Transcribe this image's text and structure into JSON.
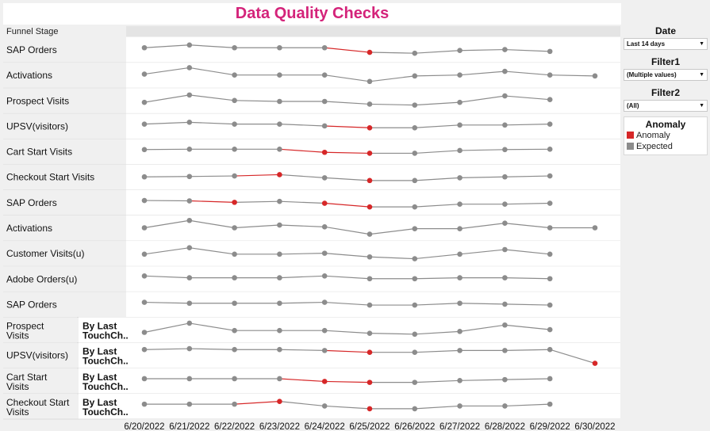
{
  "title": "Data Quality Checks",
  "header": {
    "funnel_stage": "Funnel Stage"
  },
  "filters": [
    {
      "label": "Date",
      "value": "Last 14 days"
    },
    {
      "label": "Filter1",
      "value": "(Multiple values)"
    },
    {
      "label": "Filter2",
      "value": "(All)"
    }
  ],
  "legend": {
    "title": "Anomaly",
    "items": [
      {
        "label": "Anomaly",
        "color": "#d62728"
      },
      {
        "label": "Expected",
        "color": "#8c8c8c"
      }
    ]
  },
  "colors": {
    "anomaly": "#d62728",
    "expected": "#8c8c8c",
    "title": "#d4237a"
  },
  "chart_data": {
    "type": "line",
    "x": [
      "6/20/2022",
      "6/21/2022",
      "6/22/2022",
      "6/23/2022",
      "6/24/2022",
      "6/25/2022",
      "6/26/2022",
      "6/27/2022",
      "6/28/2022",
      "6/29/2022",
      "6/30/2022"
    ],
    "rows": [
      {
        "label": "SAP Orders",
        "sub": "",
        "values": [
          0.6,
          0.75,
          0.6,
          0.6,
          0.6,
          0.35,
          0.3,
          0.45,
          0.5,
          0.4,
          null
        ],
        "anomaly": [
          5
        ]
      },
      {
        "label": "Activations",
        "sub": "",
        "values": [
          0.55,
          0.9,
          0.5,
          0.5,
          0.5,
          0.15,
          0.45,
          0.5,
          0.7,
          0.5,
          0.45
        ],
        "anomaly": []
      },
      {
        "label": "Prospect Visits",
        "sub": "",
        "values": [
          0.4,
          0.8,
          0.5,
          0.45,
          0.45,
          0.3,
          0.25,
          0.4,
          0.75,
          0.55,
          null
        ],
        "anomaly": []
      },
      {
        "label": "UPSV(visitors)",
        "sub": "",
        "values": [
          0.6,
          0.7,
          0.6,
          0.6,
          0.5,
          0.4,
          0.4,
          0.55,
          0.55,
          0.6,
          null
        ],
        "anomaly": [
          5
        ]
      },
      {
        "label": "Cart Start Visits",
        "sub": "",
        "values": [
          0.6,
          0.62,
          0.62,
          0.62,
          0.45,
          0.4,
          0.4,
          0.55,
          0.6,
          0.62,
          null
        ],
        "anomaly": [
          4,
          5
        ]
      },
      {
        "label": "Checkout Start Visits",
        "sub": "",
        "values": [
          0.5,
          0.52,
          0.55,
          0.62,
          0.45,
          0.3,
          0.3,
          0.45,
          0.5,
          0.55,
          null
        ],
        "anomaly": [
          3,
          5
        ]
      },
      {
        "label": "SAP Orders",
        "sub": "",
        "values": [
          0.6,
          0.58,
          0.5,
          0.55,
          0.45,
          0.25,
          0.25,
          0.4,
          0.4,
          0.45,
          null
        ],
        "anomaly": [
          2,
          4,
          5
        ]
      },
      {
        "label": "Activations",
        "sub": "",
        "values": [
          0.5,
          0.9,
          0.5,
          0.65,
          0.55,
          0.15,
          0.45,
          0.45,
          0.75,
          0.5,
          0.5
        ],
        "anomaly": []
      },
      {
        "label": "Customer Visits(u)",
        "sub": "",
        "values": [
          0.45,
          0.8,
          0.45,
          0.45,
          0.5,
          0.3,
          0.2,
          0.45,
          0.7,
          0.45,
          null
        ],
        "anomaly": []
      },
      {
        "label": "Adobe Orders(u)",
        "sub": "",
        "values": [
          0.65,
          0.55,
          0.55,
          0.55,
          0.65,
          0.5,
          0.5,
          0.55,
          0.55,
          0.5,
          null
        ],
        "anomaly": []
      },
      {
        "label": "SAP Orders",
        "sub": "",
        "values": [
          0.6,
          0.55,
          0.55,
          0.55,
          0.6,
          0.45,
          0.45,
          0.55,
          0.5,
          0.45,
          null
        ],
        "anomaly": []
      },
      {
        "label": "Prospect Visits",
        "sub": "By LastTouchCh..",
        "values": [
          0.35,
          0.85,
          0.45,
          0.45,
          0.45,
          0.3,
          0.25,
          0.4,
          0.75,
          0.5,
          null
        ],
        "anomaly": []
      },
      {
        "label": "UPSV(visitors)",
        "sub": "By LastTouchCh..",
        "values": [
          0.8,
          0.85,
          0.8,
          0.8,
          0.75,
          0.65,
          0.65,
          0.75,
          0.75,
          0.8,
          0.05
        ],
        "anomaly": [
          5,
          10
        ]
      },
      {
        "label": "Cart Start Visits",
        "sub": "By LastTouchCh..",
        "values": [
          0.6,
          0.6,
          0.6,
          0.6,
          0.45,
          0.4,
          0.4,
          0.5,
          0.55,
          0.6,
          null
        ],
        "anomaly": [
          4,
          5
        ]
      },
      {
        "label": "Checkout Start Visits",
        "sub": "By LastTouchCh..",
        "values": [
          0.6,
          0.6,
          0.6,
          0.75,
          0.5,
          0.35,
          0.35,
          0.5,
          0.5,
          0.6,
          null
        ],
        "anomaly": [
          3,
          5
        ]
      }
    ]
  }
}
